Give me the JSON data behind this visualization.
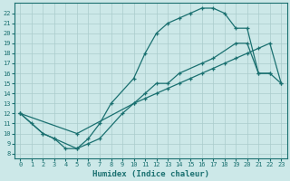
{
  "xlabel": "Humidex (Indice chaleur)",
  "xlim": [
    -0.5,
    23.5
  ],
  "ylim": [
    7.5,
    23.0
  ],
  "xticks": [
    0,
    1,
    2,
    3,
    4,
    5,
    6,
    7,
    8,
    9,
    10,
    11,
    12,
    13,
    14,
    15,
    16,
    17,
    18,
    19,
    20,
    21,
    22,
    23
  ],
  "yticks": [
    8,
    9,
    10,
    11,
    12,
    13,
    14,
    15,
    16,
    17,
    18,
    19,
    20,
    21,
    22
  ],
  "bg_color": "#cce8e8",
  "line_color": "#1a7070",
  "grid_color": "#aacccc",
  "line1_x": [
    0,
    1,
    2,
    3,
    4,
    5,
    6,
    7,
    8,
    10,
    11,
    12,
    13,
    14,
    15,
    16,
    17,
    18,
    19,
    20,
    21,
    22
  ],
  "line1_y": [
    12,
    11,
    10,
    9.5,
    8.5,
    8.5,
    9.5,
    11,
    13,
    15.5,
    18,
    20,
    21,
    21.5,
    22,
    22.5,
    22.5,
    22,
    20.5,
    20.5,
    16,
    16
  ],
  "line2_x": [
    0,
    2,
    3,
    5,
    6,
    7,
    9,
    10,
    11,
    12,
    13,
    14,
    16,
    17,
    19,
    20,
    21,
    22,
    23
  ],
  "line2_y": [
    12,
    10,
    9.5,
    8.5,
    9,
    9.5,
    12,
    13,
    14,
    15,
    15,
    16,
    17,
    17.5,
    19,
    19,
    16,
    16,
    15
  ],
  "line3_x": [
    0,
    5,
    10,
    11,
    12,
    13,
    14,
    15,
    16,
    17,
    18,
    19,
    20,
    21,
    22,
    23
  ],
  "line3_y": [
    12,
    10,
    13,
    13.5,
    14,
    14.5,
    15,
    15.5,
    16,
    16.5,
    17,
    17.5,
    18,
    18.5,
    19,
    15
  ]
}
